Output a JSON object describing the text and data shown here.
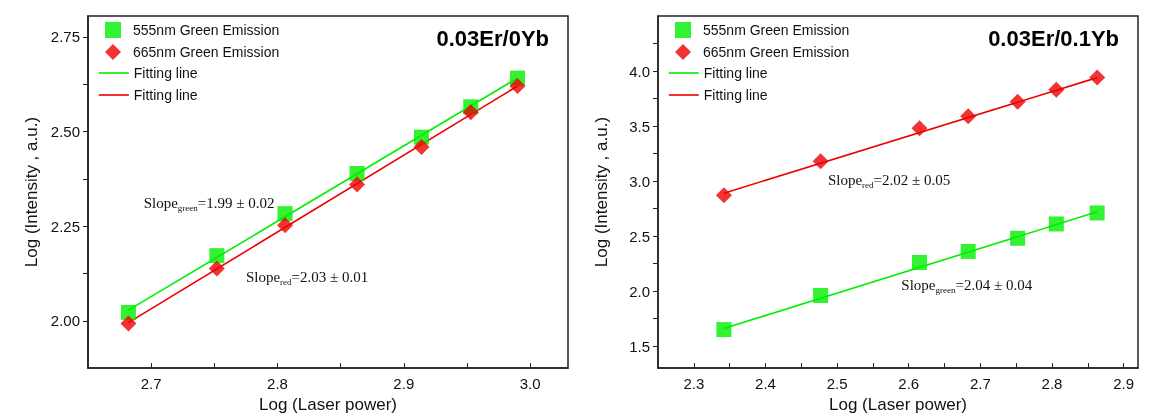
{
  "chart_data": [
    {
      "type": "scatter",
      "title": "0.03Er/0Yb",
      "xlabel": "Log (Laser power)",
      "ylabel": "Log (Intensity , a.u.)",
      "xlim": [
        2.65,
        3.03
      ],
      "ylim": [
        1.875,
        2.805
      ],
      "xticks": [
        2.7,
        {
          "value": 2.75,
          "label": null
        },
        2.8,
        {
          "value": 2.85,
          "label": null
        },
        2.9,
        {
          "value": 2.95,
          "label": null
        },
        {
          "value": 3.0,
          "label": "3.0"
        }
      ],
      "yticks": [
        {
          "value": 2.0,
          "label": "2.00"
        },
        {
          "value": 2.125,
          "label": null
        },
        {
          "value": 2.25,
          "label": "2.25"
        },
        {
          "value": 2.375,
          "label": null
        },
        {
          "value": 2.5,
          "label": "2.50"
        },
        {
          "value": 2.625,
          "label": null
        },
        {
          "value": 2.75,
          "label": "2.75"
        }
      ],
      "legend": "top left",
      "grid": false,
      "series": [
        {
          "name": "555nm Green Emission",
          "marker": "square",
          "color": "#00ee00",
          "x": [
            2.682,
            2.752,
            2.806,
            2.863,
            2.914,
            2.953,
            2.99
          ],
          "values": [
            2.022,
            2.172,
            2.283,
            2.389,
            2.485,
            2.565,
            2.641
          ]
        },
        {
          "name": "665nm Green Emission",
          "marker": "diamond",
          "color": "#ee0000",
          "x": [
            2.682,
            2.752,
            2.806,
            2.863,
            2.914,
            2.953,
            2.99
          ],
          "values": [
            1.993,
            2.138,
            2.252,
            2.36,
            2.459,
            2.551,
            2.62
          ]
        },
        {
          "name": "Fitting line",
          "type": "line",
          "marker": "none",
          "color": "#00ee00",
          "x": [
            2.682,
            2.99
          ],
          "values": [
            2.028,
            2.641
          ]
        },
        {
          "name": "Fitting line",
          "type": "line",
          "marker": "none",
          "color": "#ee0000",
          "x": [
            2.682,
            2.99
          ],
          "values": [
            1.995,
            2.62
          ]
        }
      ],
      "annotations": [
        "Slope$_{green}$=1.99 ± 0.02",
        "Slope$_{red}$=2.03 ± 0.01"
      ]
    },
    {
      "type": "scatter",
      "title": "0.03Er/0.1Yb",
      "xlabel": "Log (Laser power)",
      "ylabel": "Log (Intensity , a.u.)",
      "xlim": [
        2.25,
        2.92
      ],
      "ylim": [
        1.3,
        4.5
      ],
      "xticks": [
        2.3,
        {
          "value": 2.35,
          "label": null
        },
        2.4,
        {
          "value": 2.45,
          "label": null
        },
        2.5,
        {
          "value": 2.55,
          "label": null
        },
        2.6,
        {
          "value": 2.65,
          "label": null
        },
        2.7,
        {
          "value": 2.75,
          "label": null
        },
        2.8,
        {
          "value": 2.85,
          "label": null
        },
        2.9
      ],
      "yticks": [
        1.5,
        {
          "value": 1.75,
          "label": null
        },
        {
          "value": 2.0,
          "label": "2.0"
        },
        {
          "value": 2.25,
          "label": null
        },
        2.5,
        {
          "value": 2.75,
          "label": null
        },
        {
          "value": 3.0,
          "label": "3.0"
        },
        {
          "value": 3.25,
          "label": null
        },
        3.5,
        {
          "value": 3.75,
          "label": null
        },
        {
          "value": 4.0,
          "label": "4.0"
        },
        {
          "value": 4.25,
          "label": null
        }
      ],
      "legend": "top left",
      "grid": false,
      "series": [
        {
          "name": "555nm Green Emission",
          "marker": "square",
          "color": "#00ee00",
          "x": [
            2.342,
            2.477,
            2.615,
            2.683,
            2.752,
            2.806,
            2.863
          ],
          "values": [
            1.65,
            1.96,
            2.26,
            2.36,
            2.48,
            2.61,
            2.71
          ]
        },
        {
          "name": "665nm Green Emission",
          "marker": "diamond",
          "color": "#ee0000",
          "x": [
            2.342,
            2.477,
            2.615,
            2.683,
            2.752,
            2.806,
            2.863
          ],
          "values": [
            2.87,
            3.18,
            3.48,
            3.59,
            3.72,
            3.83,
            3.94
          ]
        },
        {
          "name": "Fitting line",
          "type": "line",
          "marker": "none",
          "color": "#00ee00",
          "x": [
            2.342,
            2.863
          ],
          "values": [
            1.66,
            2.72
          ]
        },
        {
          "name": "Fitting line",
          "type": "line",
          "marker": "none",
          "color": "#ee0000",
          "x": [
            2.342,
            2.863
          ],
          "values": [
            2.89,
            3.94
          ]
        }
      ],
      "annotations": [
        "Slope$_{red}$=2.02 ± 0.05",
        "Slope$_{green}$=2.04 ± 0.04"
      ]
    }
  ]
}
